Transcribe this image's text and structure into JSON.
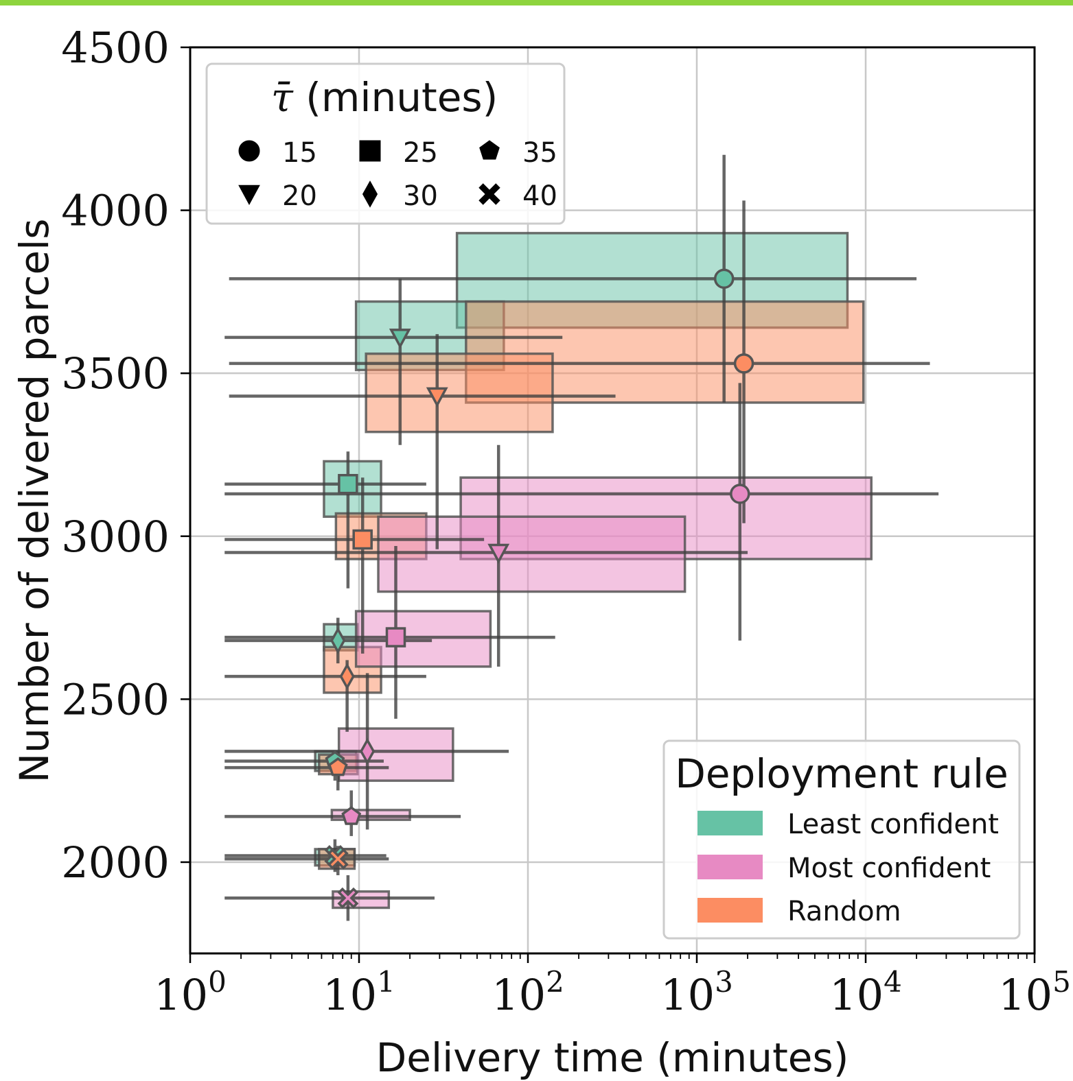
{
  "chart_data": {
    "type": "scatter",
    "xlabel": "Delivery time (minutes)",
    "ylabel": "Number of delivered parcels",
    "x_scale": "log",
    "xlim": [
      1,
      100000
    ],
    "ylim": [
      1720,
      4500
    ],
    "x_ticks": [
      {
        "value": 1,
        "base": "10",
        "exp": "0"
      },
      {
        "value": 10,
        "base": "10",
        "exp": "1"
      },
      {
        "value": 100,
        "base": "10",
        "exp": "2"
      },
      {
        "value": 1000,
        "base": "10",
        "exp": "3"
      },
      {
        "value": 10000,
        "base": "10",
        "exp": "4"
      },
      {
        "value": 100000,
        "base": "10",
        "exp": "5"
      }
    ],
    "y_ticks": [
      {
        "value": 2000,
        "label": "2000"
      },
      {
        "value": 2500,
        "label": "2500"
      },
      {
        "value": 3000,
        "label": "3000"
      },
      {
        "value": 3500,
        "label": "3500"
      },
      {
        "value": 4000,
        "label": "4000"
      },
      {
        "value": 4500,
        "label": "4500"
      }
    ],
    "grid": true,
    "colors": {
      "Least confident": "#66c2a5",
      "Most confident": "#e78ac3",
      "Random": "#fc8d62"
    },
    "shape_legend": {
      "title_symbol": "τ̄",
      "title_rest": " (minutes)",
      "placement": "top-left",
      "entries": [
        {
          "label": "15",
          "marker": "circle"
        },
        {
          "label": "20",
          "marker": "triangle-down"
        },
        {
          "label": "25",
          "marker": "square"
        },
        {
          "label": "30",
          "marker": "diamond"
        },
        {
          "label": "35",
          "marker": "pentagon"
        },
        {
          "label": "40",
          "marker": "x"
        }
      ]
    },
    "color_legend": {
      "title": "Deployment rule",
      "placement": "bottom-right",
      "entries": [
        "Least confident",
        "Most confident",
        "Random"
      ]
    },
    "series": [
      {
        "name": "Least confident",
        "points": [
          {
            "tau": "15",
            "x": 1450,
            "y": 3790,
            "box_x": [
              38,
              7800
            ],
            "box_y": [
              3640,
              3930
            ],
            "err_x": [
              1.7,
              20000
            ],
            "err_y": [
              3410,
              4170
            ]
          },
          {
            "tau": "20",
            "x": 17.5,
            "y": 3610,
            "box_x": [
              9.6,
              72
            ],
            "box_y": [
              3510,
              3720
            ],
            "err_x": [
              1.6,
              160
            ],
            "err_y": [
              3280,
              3790
            ]
          },
          {
            "tau": "25",
            "x": 8.6,
            "y": 3160,
            "box_x": [
              6.2,
              13.5
            ],
            "box_y": [
              3060,
              3230
            ],
            "err_x": [
              1.6,
              25
            ],
            "err_y": [
              2840,
              3260
            ]
          },
          {
            "tau": "30",
            "x": 7.5,
            "y": 2680,
            "box_x": [
              6.2,
              9.8
            ],
            "box_y": [
              2650,
              2730
            ],
            "err_x": [
              1.6,
              27
            ],
            "err_y": [
              2610,
              2750
            ]
          },
          {
            "tau": "35",
            "x": 7.2,
            "y": 2310,
            "box_x": [
              5.5,
              9.6
            ],
            "box_y": [
              2280,
              2340
            ],
            "err_x": [
              1.6,
              14
            ],
            "err_y": [
              2250,
              2340
            ]
          },
          {
            "tau": "40",
            "x": 7.2,
            "y": 2020,
            "box_x": [
              5.5,
              9.4
            ],
            "box_y": [
              1990,
              2040
            ],
            "err_x": [
              1.6,
              14.5
            ],
            "err_y": [
              1970,
              2070
            ]
          }
        ]
      },
      {
        "name": "Random",
        "points": [
          {
            "tau": "15",
            "x": 1900,
            "y": 3530,
            "box_x": [
              43,
              9700
            ],
            "box_y": [
              3410,
              3720
            ],
            "err_x": [
              1.7,
              24000
            ],
            "err_y": [
              3040,
              4030
            ]
          },
          {
            "tau": "20",
            "x": 29,
            "y": 3430,
            "box_x": [
              11,
              140
            ],
            "box_y": [
              3320,
              3560
            ],
            "err_x": [
              1.7,
              330
            ],
            "err_y": [
              2960,
              3620
            ]
          },
          {
            "tau": "25",
            "x": 10.5,
            "y": 2990,
            "box_x": [
              7.3,
              25
            ],
            "box_y": [
              2930,
              3070
            ],
            "err_x": [
              1.6,
              55
            ],
            "err_y": [
              2640,
              3180
            ]
          },
          {
            "tau": "30",
            "x": 8.5,
            "y": 2570,
            "box_x": [
              6.2,
              13.5
            ],
            "box_y": [
              2520,
              2660
            ],
            "err_x": [
              1.6,
              25
            ],
            "err_y": [
              2400,
              2620
            ]
          },
          {
            "tau": "35",
            "x": 7.5,
            "y": 2290,
            "box_x": [
              5.8,
              9.8
            ],
            "box_y": [
              2270,
              2330
            ],
            "err_x": [
              1.6,
              15
            ],
            "err_y": [
              2220,
              2340
            ]
          },
          {
            "tau": "40",
            "x": 7.5,
            "y": 2010,
            "box_x": [
              5.8,
              9.4
            ],
            "box_y": [
              1980,
              2040
            ],
            "err_x": [
              1.6,
              15
            ],
            "err_y": [
              1960,
              2050
            ]
          }
        ]
      },
      {
        "name": "Most confident",
        "points": [
          {
            "tau": "15",
            "x": 1800,
            "y": 3130,
            "box_x": [
              40,
              10800
            ],
            "box_y": [
              2930,
              3180
            ],
            "err_x": [
              1.6,
              27000
            ],
            "err_y": [
              2680,
              3470
            ]
          },
          {
            "tau": "20",
            "x": 67,
            "y": 2950,
            "box_x": [
              13,
              850
            ],
            "box_y": [
              2830,
              3060
            ],
            "err_x": [
              1.6,
              2000
            ],
            "err_y": [
              2600,
              3280
            ]
          },
          {
            "tau": "25",
            "x": 16.5,
            "y": 2690,
            "box_x": [
              9.6,
              60
            ],
            "box_y": [
              2600,
              2770
            ],
            "err_x": [
              1.6,
              145
            ],
            "err_y": [
              2440,
              2970
            ]
          },
          {
            "tau": "30",
            "x": 11.2,
            "y": 2340,
            "box_x": [
              7.6,
              36
            ],
            "box_y": [
              2250,
              2410
            ],
            "err_x": [
              1.6,
              77
            ],
            "err_y": [
              2100,
              2580
            ]
          },
          {
            "tau": "35",
            "x": 9.0,
            "y": 2140,
            "box_x": [
              6.9,
              20
            ],
            "box_y": [
              2130,
              2160
            ],
            "err_x": [
              1.6,
              40
            ],
            "err_y": [
              2080,
              2220
            ]
          },
          {
            "tau": "40",
            "x": 8.6,
            "y": 1890,
            "box_x": [
              7.0,
              15
            ],
            "box_y": [
              1860,
              1910
            ],
            "err_x": [
              1.6,
              28
            ],
            "err_y": [
              1820,
              1960
            ]
          }
        ]
      }
    ]
  }
}
